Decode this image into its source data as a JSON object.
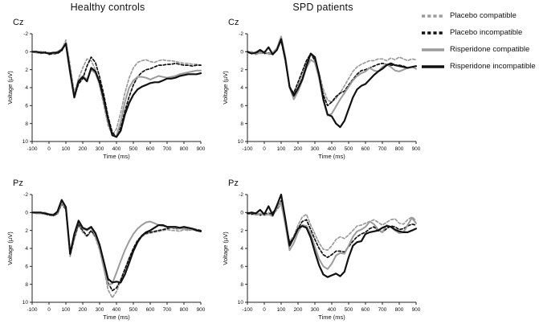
{
  "figure": {
    "column_titles": [
      "Healthy controls",
      "SPD patients"
    ],
    "colors": {
      "gray": "#9b9b9b",
      "black": "#111111",
      "axis": "#222222",
      "background": "#ffffff"
    }
  },
  "legend": {
    "position": "top-right",
    "items": [
      {
        "label": "Placebo compatible",
        "color": "#9b9b9b",
        "style": "dashed"
      },
      {
        "label": "Placebo incompatible",
        "color": "#111111",
        "style": "dashed"
      },
      {
        "label": "Risperidone compatible",
        "color": "#9b9b9b",
        "style": "solid"
      },
      {
        "label": "Risperidone incompatible",
        "color": "#111111",
        "style": "solid"
      }
    ]
  },
  "chart_data": [
    {
      "type": "line",
      "group": "Healthy controls",
      "panel": "Cz",
      "xlabel": "Time (ms)",
      "ylabel": "Voltage (µV)",
      "xlim": [
        -100,
        900
      ],
      "ylim": [
        -2,
        10
      ],
      "y_inverted": true,
      "grid": false,
      "xticks": [
        -100,
        0,
        100,
        200,
        300,
        400,
        500,
        600,
        700,
        800,
        900
      ],
      "yticks": [
        -2,
        0,
        2,
        4,
        6,
        8,
        10
      ],
      "x": [
        -100,
        -75,
        -50,
        -25,
        0,
        25,
        50,
        75,
        100,
        125,
        150,
        175,
        200,
        225,
        250,
        275,
        300,
        325,
        350,
        375,
        400,
        425,
        450,
        475,
        500,
        525,
        550,
        575,
        600,
        625,
        650,
        675,
        700,
        725,
        750,
        775,
        800,
        825,
        850,
        875,
        900
      ],
      "series": [
        {
          "name": "Placebo compatible",
          "color": "#9b9b9b",
          "style": "dashed",
          "values": [
            0.1,
            0,
            0.2,
            0.1,
            0.2,
            0.3,
            0.1,
            -0.2,
            -1.3,
            1.5,
            4.6,
            3,
            1.8,
            0.8,
            1,
            2,
            3.8,
            6,
            8.2,
            9.3,
            8.6,
            6.8,
            4.6,
            2.9,
            1.8,
            1.2,
            1,
            0.9,
            1.1,
            1.2,
            1,
            0.9,
            1,
            1,
            1.1,
            1.2,
            1.3,
            1.3,
            1.4,
            1.4,
            1.5
          ]
        },
        {
          "name": "Placebo incompatible",
          "color": "#111111",
          "style": "dashed",
          "values": [
            0,
            0.1,
            0.1,
            0,
            0.3,
            0.2,
            0.2,
            -0.1,
            -0.9,
            2,
            5,
            3.6,
            3,
            1.6,
            0.6,
            1.2,
            2.8,
            4.8,
            7.2,
            9,
            9.5,
            8.4,
            6.6,
            5,
            3.7,
            2.8,
            2.3,
            2,
            1.9,
            1.7,
            1.5,
            1.5,
            1.4,
            1.4,
            1.3,
            1.4,
            1.5,
            1.5,
            1.6,
            1.5,
            1.5
          ]
        },
        {
          "name": "Risperidone compatible",
          "color": "#9b9b9b",
          "style": "solid",
          "values": [
            0,
            0.1,
            0,
            0.1,
            0.1,
            0.2,
            0,
            -0.3,
            -1,
            2.2,
            5,
            3.2,
            2.7,
            3.1,
            2,
            2.4,
            3.6,
            5.6,
            7.8,
            9.3,
            9.4,
            7.8,
            5.6,
            4,
            3.2,
            2.8,
            2.8,
            2.9,
            3.1,
            2.9,
            2.7,
            2.8,
            2.9,
            2.8,
            2.7,
            2.5,
            2.4,
            2.3,
            2.2,
            2.1,
            2.1
          ]
        },
        {
          "name": "Risperidone incompatible",
          "color": "#111111",
          "style": "solid",
          "values": [
            0,
            0,
            0.1,
            0.1,
            0.2,
            0.1,
            0.1,
            -0.2,
            -0.9,
            2.3,
            5.1,
            3.3,
            2.8,
            3.3,
            1.8,
            2.2,
            3.4,
            5.3,
            7.5,
            9.3,
            9.5,
            8.8,
            7,
            5.7,
            4.8,
            4.2,
            3.9,
            3.7,
            3.5,
            3.4,
            3.4,
            3.2,
            3,
            3,
            2.9,
            2.7,
            2.6,
            2.5,
            2.5,
            2.5,
            2.4
          ]
        }
      ]
    },
    {
      "type": "line",
      "group": "SPD patients",
      "panel": "Cz",
      "xlabel": "Time (ms)",
      "ylabel": "Voltage (µV)",
      "xlim": [
        -100,
        900
      ],
      "ylim": [
        -2,
        10
      ],
      "y_inverted": true,
      "grid": false,
      "xticks": [
        -100,
        0,
        100,
        200,
        300,
        400,
        500,
        600,
        700,
        800,
        900
      ],
      "yticks": [
        -2,
        0,
        2,
        4,
        6,
        8,
        10
      ],
      "x": [
        -100,
        -75,
        -50,
        -25,
        0,
        25,
        50,
        75,
        100,
        125,
        150,
        175,
        200,
        225,
        250,
        275,
        300,
        325,
        350,
        375,
        400,
        425,
        450,
        475,
        500,
        525,
        550,
        575,
        600,
        625,
        650,
        675,
        700,
        725,
        750,
        775,
        800,
        825,
        850,
        875,
        900
      ],
      "series": [
        {
          "name": "Placebo compatible",
          "color": "#9b9b9b",
          "style": "dashed",
          "values": [
            0.1,
            0.2,
            0,
            0.2,
            0.1,
            0.3,
            0.2,
            -0.2,
            -1.2,
            0.8,
            3.8,
            4.8,
            3.8,
            2.6,
            1.2,
            0.2,
            0.8,
            2.4,
            4.2,
            5.4,
            5.6,
            5.2,
            4.6,
            3.8,
            3,
            2.2,
            1.7,
            1.4,
            1.2,
            1,
            1,
            0.8,
            0.8,
            1,
            0.7,
            0.9,
            0.6,
            0.8,
            1,
            0.8,
            0.9
          ]
        },
        {
          "name": "Placebo incompatible",
          "color": "#111111",
          "style": "dashed",
          "values": [
            0,
            0.1,
            0.2,
            0,
            0.2,
            0.1,
            0.3,
            -0.3,
            -1.2,
            1,
            4,
            4.6,
            3.4,
            2.2,
            1,
            0.2,
            1,
            2.8,
            4.8,
            6,
            5.6,
            5,
            4.6,
            4.4,
            3.7,
            3.1,
            2.5,
            2.1,
            2,
            1.8,
            1.6,
            1.4,
            1.3,
            1.4,
            1.5,
            1.5,
            1.5,
            1.6,
            1.8,
            1.7,
            1.6
          ]
        },
        {
          "name": "Risperidone compatible",
          "color": "#9b9b9b",
          "style": "solid",
          "values": [
            0.1,
            0,
            0.3,
            0.1,
            0,
            0.2,
            0.1,
            -0.4,
            -1.7,
            0.6,
            4,
            5.3,
            4.4,
            3.2,
            1.8,
            0.9,
            1.2,
            3,
            5.4,
            7.1,
            6.9,
            6.1,
            5.3,
            4.6,
            3.9,
            3.2,
            2.7,
            2.4,
            2.2,
            1.8,
            2.1,
            2.2,
            1.7,
            1.4,
            1.7,
            2.1,
            2.2,
            2,
            1.8,
            1.7,
            1.9
          ]
        },
        {
          "name": "Risperidone incompatible",
          "color": "#111111",
          "style": "solid",
          "values": [
            0,
            0.2,
            0.1,
            -0.2,
            0.1,
            -0.5,
            0.3,
            -0.2,
            -1.4,
            0.9,
            3.9,
            4.9,
            4.1,
            3.1,
            1.6,
            0.2,
            0.6,
            2.6,
            5.3,
            7,
            7.2,
            8,
            8.4,
            7.7,
            6.4,
            5.1,
            4.2,
            3.8,
            3.6,
            3.1,
            2.6,
            2.2,
            1.9,
            1.5,
            1.3,
            1.5,
            1.6,
            1.7,
            1.8,
            1.7,
            1.6
          ]
        }
      ]
    },
    {
      "type": "line",
      "group": "Healthy controls",
      "panel": "Pz",
      "xlabel": "Time (ms)",
      "ylabel": "Voltage (µV)",
      "xlim": [
        -100,
        900
      ],
      "ylim": [
        -2,
        10
      ],
      "y_inverted": true,
      "grid": false,
      "xticks": [
        -100,
        0,
        100,
        200,
        300,
        400,
        500,
        600,
        700,
        800,
        900
      ],
      "yticks": [
        -2,
        0,
        2,
        4,
        6,
        8,
        10
      ],
      "x": [
        -100,
        -75,
        -50,
        -25,
        0,
        25,
        50,
        75,
        100,
        125,
        150,
        175,
        200,
        225,
        250,
        275,
        300,
        325,
        350,
        375,
        400,
        425,
        450,
        475,
        500,
        525,
        550,
        575,
        600,
        625,
        650,
        675,
        700,
        725,
        750,
        775,
        800,
        825,
        850,
        875,
        900
      ],
      "series": [
        {
          "name": "Placebo compatible",
          "color": "#9b9b9b",
          "style": "dashed",
          "values": [
            0,
            0.1,
            0,
            0.2,
            0.2,
            0.4,
            0.2,
            -0.9,
            -0.3,
            4.9,
            3,
            1.4,
            2.2,
            2.7,
            2.1,
            2.8,
            4.2,
            6.2,
            8.6,
            9.5,
            8.8,
            7.6,
            6.4,
            5.1,
            4.1,
            3.2,
            2.7,
            2.4,
            2.3,
            2.2,
            2.1,
            2,
            1.9,
            2,
            2,
            2.1,
            1.9,
            2,
            1.9,
            1.9,
            2
          ]
        },
        {
          "name": "Placebo incompatible",
          "color": "#111111",
          "style": "dashed",
          "values": [
            0,
            0,
            0.1,
            0.1,
            0.3,
            0.3,
            0.1,
            -1,
            -0.4,
            4.7,
            2.8,
            1.3,
            2,
            2.6,
            2,
            2.6,
            3.9,
            5.8,
            7.8,
            8.7,
            8.4,
            7.5,
            6.3,
            5.1,
            4,
            3.1,
            2.6,
            2.3,
            2.2,
            2.1,
            2,
            1.9,
            1.8,
            1.7,
            1.8,
            1.8,
            1.7,
            1.8,
            1.8,
            1.9,
            2
          ]
        },
        {
          "name": "Risperidone compatible",
          "color": "#9b9b9b",
          "style": "solid",
          "values": [
            0,
            0.1,
            0.1,
            0,
            0.2,
            0.2,
            0,
            -1.1,
            -0.5,
            4.5,
            2.6,
            1,
            1.8,
            2,
            1.7,
            2.5,
            4,
            6.2,
            8.1,
            7.9,
            6.7,
            5.4,
            4.2,
            3.2,
            2.4,
            1.8,
            1.4,
            1.1,
            1,
            1.2,
            1.4,
            1.5,
            1.6,
            1.7,
            1.7,
            1.8,
            1.8,
            1.9,
            1.9,
            2,
            2.1
          ]
        },
        {
          "name": "Risperidone incompatible",
          "color": "#111111",
          "style": "solid",
          "values": [
            0,
            0,
            0,
            0.1,
            0.2,
            0.3,
            -0.1,
            -1.4,
            -0.6,
            4.6,
            2.4,
            0.9,
            1.7,
            1.9,
            1.6,
            2.3,
            3.6,
            5.5,
            7.4,
            7.8,
            7.7,
            7.8,
            6.9,
            5.6,
            4.3,
            3.3,
            2.6,
            2.2,
            2,
            1.7,
            1.4,
            1.4,
            1.6,
            1.6,
            1.6,
            1.7,
            1.6,
            1.7,
            1.8,
            2,
            2.1
          ]
        }
      ]
    },
    {
      "type": "line",
      "group": "SPD patients",
      "panel": "Pz",
      "xlabel": "Time (ms)",
      "ylabel": "Voltage (µV)",
      "xlim": [
        -100,
        900
      ],
      "ylim": [
        -2,
        10
      ],
      "y_inverted": true,
      "grid": false,
      "xticks": [
        -100,
        0,
        100,
        200,
        300,
        400,
        500,
        600,
        700,
        800,
        900
      ],
      "yticks": [
        -2,
        0,
        2,
        4,
        6,
        8,
        10
      ],
      "x": [
        -100,
        -75,
        -50,
        -25,
        0,
        25,
        50,
        75,
        100,
        125,
        150,
        175,
        200,
        225,
        250,
        275,
        300,
        325,
        350,
        375,
        400,
        425,
        450,
        475,
        500,
        525,
        550,
        575,
        600,
        625,
        650,
        675,
        700,
        725,
        750,
        775,
        800,
        825,
        850,
        875,
        900
      ],
      "series": [
        {
          "name": "Placebo compatible",
          "color": "#9b9b9b",
          "style": "dashed",
          "values": [
            0.2,
            0.1,
            0.3,
            0.1,
            0.2,
            0,
            0.3,
            -0.3,
            -0.9,
            1.2,
            3.2,
            2.6,
            1.4,
            0.5,
            0.2,
            1.4,
            2.4,
            3.4,
            4.1,
            4.2,
            3.7,
            3,
            2.7,
            2.9,
            2.5,
            2,
            1.5,
            1.4,
            1.2,
            1,
            0.8,
            1.1,
            1.4,
            1.1,
            0.8,
            0.7,
            1.2,
            1.3,
            0.8,
            0.5,
            0.9
          ]
        },
        {
          "name": "Placebo incompatible",
          "color": "#111111",
          "style": "dashed",
          "values": [
            0,
            0.2,
            0.1,
            0.3,
            0.1,
            0.2,
            0,
            -0.5,
            -1.3,
            1,
            3.4,
            2.8,
            1.8,
            1,
            0.8,
            1.9,
            3,
            4,
            4.7,
            5,
            4.7,
            4.3,
            4.3,
            4.4,
            3.8,
            3.2,
            2.7,
            2.4,
            2.2,
            1.8,
            1.6,
            2,
            2.2,
            1.8,
            1.5,
            1.6,
            1.9,
            1.8,
            1.5,
            1.3,
            1.4
          ]
        },
        {
          "name": "Risperidone compatible",
          "color": "#9b9b9b",
          "style": "solid",
          "values": [
            0.1,
            0,
            0.2,
            0.1,
            0.3,
            0.2,
            0.4,
            -0.6,
            -1.1,
            1.4,
            4.2,
            3.4,
            2.2,
            1.4,
            1.5,
            2.4,
            3.8,
            5.2,
            6,
            6.3,
            5.7,
            4.8,
            4.5,
            4.6,
            3.7,
            2.7,
            2.1,
            1.9,
            1.6,
            1,
            1.3,
            1.9,
            2.2,
            1.4,
            1.6,
            2,
            2.3,
            2.2,
            1.4,
            0.6,
            1.2
          ]
        },
        {
          "name": "Risperidone incompatible",
          "color": "#111111",
          "style": "solid",
          "values": [
            0.1,
            0,
            0.1,
            -0.3,
            0.2,
            -0.7,
            0.3,
            -0.8,
            -2,
            0.8,
            3.7,
            2.8,
            1.8,
            1.5,
            1.7,
            2.8,
            4.4,
            5.9,
            6.9,
            7.2,
            7,
            6.8,
            7.1,
            6.6,
            5,
            3.7,
            3.3,
            3.2,
            2.4,
            2.2,
            2.1,
            2,
            1.7,
            1.5,
            1.6,
            1.9,
            2.1,
            2.2,
            2.2,
            2,
            1.8
          ]
        }
      ]
    }
  ]
}
